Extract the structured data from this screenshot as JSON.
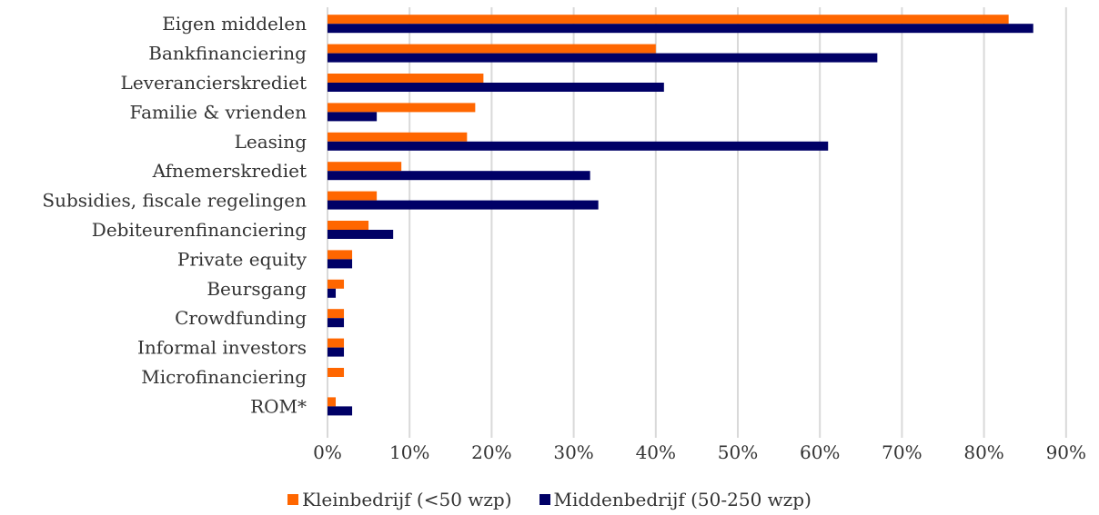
{
  "chart_data": {
    "type": "bar",
    "orientation": "horizontal",
    "categories": [
      "Eigen middelen",
      "Bankfinanciering",
      "Leverancierskrediet",
      "Familie & vrienden",
      "Leasing",
      "Afnemerskrediet",
      "Subsidies, fiscale regelingen",
      "Debiteurenfinanciering",
      "Private equity",
      "Beursgang",
      "Crowdfunding",
      "Informal investors",
      "Microfinanciering",
      "ROM*"
    ],
    "series": [
      {
        "name": "Kleinbedrijf (<50 wzp)",
        "color": "#ff6600",
        "values": [
          83,
          40,
          19,
          18,
          17,
          9,
          6,
          5,
          3,
          2,
          2,
          2,
          2,
          1
        ]
      },
      {
        "name": "Middenbedrijf (50-250 wzp)",
        "color": "#000066",
        "values": [
          86,
          67,
          41,
          6,
          61,
          32,
          33,
          8,
          3,
          1,
          2,
          2,
          0,
          3
        ]
      }
    ],
    "xlim": [
      0,
      90
    ],
    "xticks": [
      "0%",
      "10%",
      "20%",
      "30%",
      "40%",
      "50%",
      "60%",
      "70%",
      "80%",
      "90%"
    ],
    "grid": true,
    "legend_position": "bottom",
    "unit": "%"
  }
}
